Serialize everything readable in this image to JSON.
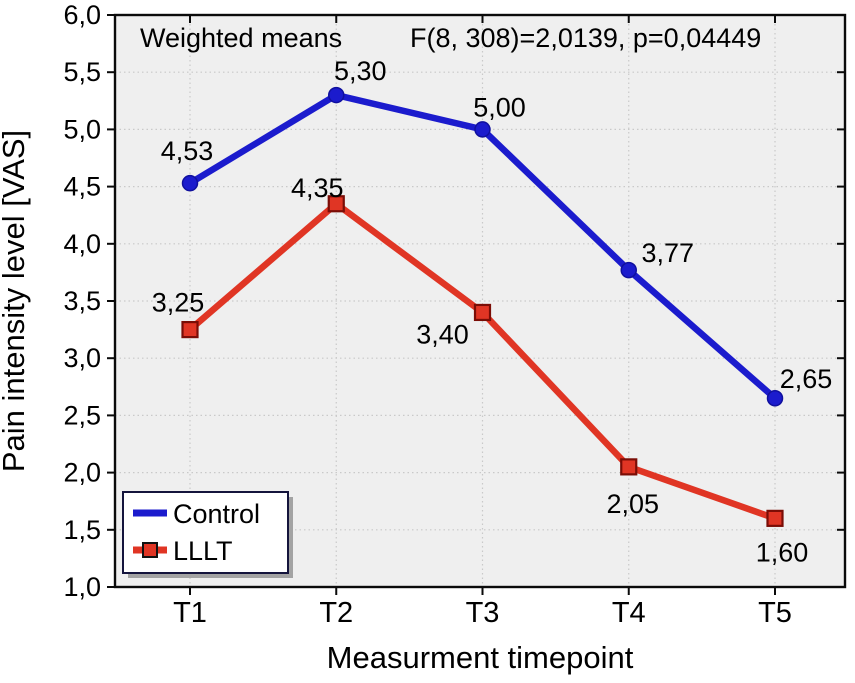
{
  "chart_data": {
    "type": "line",
    "title": "Weighted means",
    "annotation": "F(8, 308)=2,0139, p=0,04449",
    "xlabel": "Measurment timepoint",
    "ylabel": "Pain intensity level [VAS]",
    "categories": [
      "T1",
      "T2",
      "T3",
      "T4",
      "T5"
    ],
    "ylim": [
      1.0,
      6.0
    ],
    "y_tick_step": 0.5,
    "y_tick_labels": [
      "6,0",
      "5,5",
      "5,0",
      "4,5",
      "4,0",
      "3,5",
      "3,0",
      "2,5",
      "2,0",
      "1,5",
      "1,0"
    ],
    "grid": "dotted",
    "legend_position": "bottom-left",
    "series": [
      {
        "name": "Control",
        "color": "#1b1bcd",
        "marker": "circle",
        "marker_stroke": "#10109e",
        "values": [
          4.53,
          5.3,
          5.0,
          3.77,
          2.65
        ],
        "point_labels": [
          "4,53",
          "5,30",
          "5,00",
          "3,77",
          "2,65"
        ],
        "label_offsets": [
          [
            -3,
            -23
          ],
          [
            24,
            -15
          ],
          [
            17,
            -13
          ],
          [
            39,
            -8
          ],
          [
            31,
            -10
          ]
        ]
      },
      {
        "name": "LLLT",
        "color": "#e03524",
        "marker": "square",
        "marker_stroke": "#7a0d06",
        "values": [
          3.25,
          4.35,
          3.4,
          2.05,
          1.6
        ],
        "point_labels": [
          "3,25",
          "4,35",
          "3,40",
          "2,05",
          "1,60"
        ],
        "label_offsets": [
          [
            -12,
            -18
          ],
          [
            -19,
            -7
          ],
          [
            -40,
            31
          ],
          [
            4,
            46
          ],
          [
            7,
            43
          ]
        ]
      }
    ],
    "colors": {
      "plot_bg": "#efefef",
      "page_bg": "#ffffff",
      "grid": "#c9c9c9",
      "frame": "#0a0a0a",
      "text": "#000000",
      "legend_bg": "#ffffff",
      "legend_border": "#14143c",
      "legend_shadow": "#a3a3a3"
    }
  }
}
